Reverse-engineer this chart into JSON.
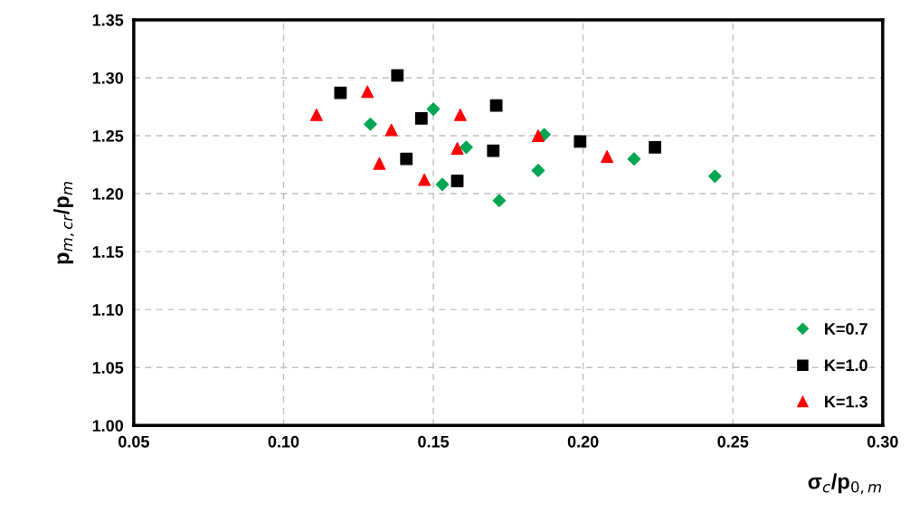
{
  "chart_data": {
    "type": "scatter",
    "xlabel": "σ$_{c}$/p$_{0,m}$",
    "ylabel": "p$_{m,cr}$/p$_{m}$",
    "xlim": [
      0.05,
      0.3
    ],
    "xticks": [
      0.05,
      {
        "value": 0.1,
        "label": "0.10"
      },
      0.15,
      {
        "value": 0.2,
        "label": "0.20"
      },
      0.25,
      {
        "value": 0.3,
        "label": "0.30"
      }
    ],
    "ylim": [
      1.0,
      1.35
    ],
    "yticks": [
      {
        "value": 1.0,
        "label": "1.00"
      },
      1.05,
      {
        "value": 1.1,
        "label": "1.10"
      },
      1.15,
      {
        "value": 1.2,
        "label": "1.20"
      },
      1.25,
      {
        "value": 1.3,
        "label": "1.30"
      },
      1.35
    ],
    "grid": true,
    "legend": "bottom right",
    "series": [
      {
        "name": "K=0.7",
        "color": "#00a651",
        "marker": "diamond",
        "x": [
          0.129,
          0.15,
          0.161,
          0.153,
          0.172,
          0.185,
          0.187,
          0.217,
          0.244
        ],
        "values": [
          1.26,
          1.273,
          1.24,
          1.208,
          1.194,
          1.22,
          1.251,
          1.23,
          1.215
        ]
      },
      {
        "name": "K=1.0",
        "color": "#000000",
        "marker": "square",
        "x": [
          0.119,
          0.138,
          0.146,
          0.171,
          0.141,
          0.158,
          0.17,
          0.199,
          0.224
        ],
        "values": [
          1.287,
          1.302,
          1.265,
          1.276,
          1.23,
          1.211,
          1.237,
          1.245,
          1.24
        ]
      },
      {
        "name": "K=1.3",
        "color": "#ff0000",
        "marker": "triangle",
        "x": [
          0.111,
          0.128,
          0.136,
          0.132,
          0.147,
          0.159,
          0.158,
          0.185,
          0.208
        ],
        "values": [
          1.268,
          1.288,
          1.255,
          1.226,
          1.212,
          1.268,
          1.239,
          1.25,
          1.232
        ]
      }
    ]
  }
}
